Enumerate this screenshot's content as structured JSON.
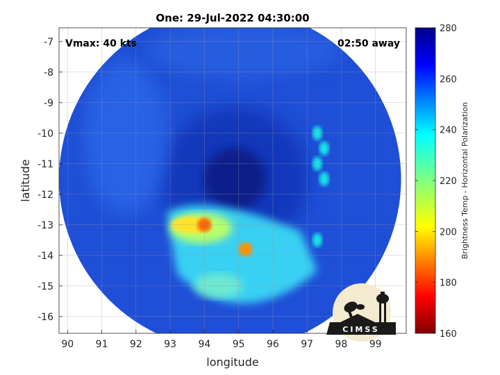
{
  "chart_data": {
    "type": "heatmap",
    "title": "One: 29-Jul-2022 04:30:00",
    "xlabel": "longitude",
    "ylabel": "latitude",
    "xlim": [
      89.75,
      99.9
    ],
    "ylim": [
      -16.55,
      -6.55
    ],
    "x_ticks": [
      90,
      91,
      92,
      93,
      94,
      95,
      96,
      97,
      98,
      99
    ],
    "y_ticks": [
      -7,
      -8,
      -9,
      -10,
      -11,
      -12,
      -13,
      -14,
      -15,
      -16
    ],
    "grid": true,
    "annotations": {
      "vmax": "Vmax: 40 kts",
      "time_away": "02:50 away"
    },
    "swath_center": [
      94.75,
      -11.5
    ],
    "swath_radius_deg": 5.0,
    "colorbar": {
      "label": "Brightness Temp - Horizontal Polarization",
      "range": [
        160,
        280
      ],
      "ticks": [
        280,
        260,
        240,
        220,
        200,
        180,
        160
      ],
      "colormap": "jet"
    },
    "features": [
      {
        "name": "eye",
        "lon": 94.9,
        "lat": -11.5,
        "tb": 270
      },
      {
        "name": "convective-band-core",
        "lon": 94.0,
        "lat": -13.0,
        "tb": 185
      },
      {
        "name": "convective-band-core",
        "lon": 95.2,
        "lat": -13.8,
        "tb": 190
      },
      {
        "name": "outer-band",
        "lon": 97.4,
        "lat": -11.0,
        "tb": 235
      }
    ]
  },
  "logo": {
    "text": "CIMSS"
  }
}
